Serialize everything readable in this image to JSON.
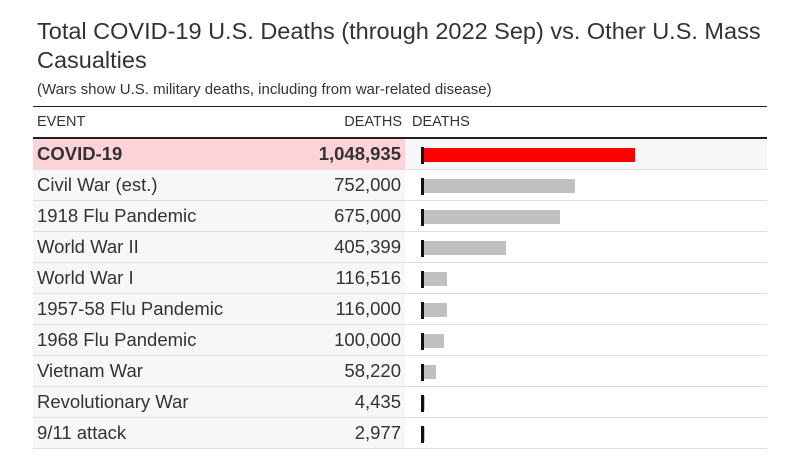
{
  "chart_data": {
    "type": "bar",
    "title": "Total COVID-19 U.S. Deaths (through 2022 Sep) vs. Other U.S. Mass Casualties",
    "subtitle": "(Wars show U.S. military deaths, including from war-related disease)",
    "columns": {
      "event": "EVENT",
      "deaths": "DEATHS",
      "bar": "DEATHS"
    },
    "xlim": [
      0,
      1048935
    ],
    "colors": {
      "highlight_bar": "#ff0000",
      "bar": "#c0c0c0",
      "highlight_row": "#fdd3d9"
    },
    "rows": [
      {
        "event": "COVID-19",
        "deaths_label": "1,048,935",
        "value": 1048935,
        "highlight": true
      },
      {
        "event": "Civil War (est.)",
        "deaths_label": "752,000",
        "value": 752000
      },
      {
        "event": "1918 Flu Pandemic",
        "deaths_label": "675,000",
        "value": 675000
      },
      {
        "event": "World War II",
        "deaths_label": "405,399",
        "value": 405399
      },
      {
        "event": "World War I",
        "deaths_label": "116,516",
        "value": 116516
      },
      {
        "event": "1957-58 Flu Pandemic",
        "deaths_label": "116,000",
        "value": 116000
      },
      {
        "event": "1968 Flu Pandemic",
        "deaths_label": "100,000",
        "value": 100000
      },
      {
        "event": "Vietnam War",
        "deaths_label": "58,220",
        "value": 58220
      },
      {
        "event": "Revolutionary War",
        "deaths_label": "4,435",
        "value": 4435
      },
      {
        "event": "9/11 attack",
        "deaths_label": "2,977",
        "value": 2977
      }
    ]
  }
}
